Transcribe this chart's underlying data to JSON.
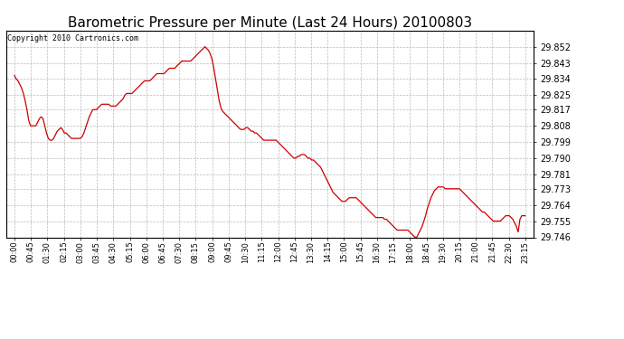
{
  "title": "Barometric Pressure per Minute (Last 24 Hours) 20100803",
  "copyright": "Copyright 2010 Cartronics.com",
  "line_color": "#cc0000",
  "background_color": "#ffffff",
  "grid_color": "#bbbbbb",
  "title_fontsize": 11,
  "ylabel_fontsize": 7,
  "xlabel_fontsize": 6,
  "ylim": [
    29.746,
    29.861
  ],
  "yticks": [
    29.852,
    29.843,
    29.834,
    29.825,
    29.817,
    29.808,
    29.799,
    29.79,
    29.781,
    29.773,
    29.764,
    29.755,
    29.746
  ],
  "xtick_labels": [
    "00:00",
    "00:45",
    "01:30",
    "02:15",
    "03:00",
    "03:45",
    "04:30",
    "05:15",
    "06:00",
    "06:45",
    "07:30",
    "08:15",
    "09:00",
    "09:45",
    "10:30",
    "11:15",
    "12:00",
    "12:45",
    "13:30",
    "14:15",
    "15:00",
    "15:45",
    "16:30",
    "17:15",
    "18:00",
    "18:45",
    "19:30",
    "20:15",
    "21:00",
    "21:45",
    "22:30",
    "23:15"
  ],
  "pressure_data": [
    29.836,
    29.834,
    29.833,
    29.831,
    29.829,
    29.826,
    29.822,
    29.817,
    29.811,
    29.808,
    29.808,
    29.808,
    29.808,
    29.81,
    29.812,
    29.813,
    29.812,
    29.808,
    29.804,
    29.801,
    29.8,
    29.8,
    29.801,
    29.803,
    29.805,
    29.806,
    29.807,
    29.806,
    29.804,
    29.804,
    29.803,
    29.802,
    29.801,
    29.801,
    29.801,
    29.801,
    29.801,
    29.801,
    29.802,
    29.804,
    29.807,
    29.81,
    29.813,
    29.815,
    29.817,
    29.817,
    29.817,
    29.818,
    29.819,
    29.82,
    29.82,
    29.82,
    29.82,
    29.82,
    29.819,
    29.819,
    29.819,
    29.819,
    29.82,
    29.821,
    29.822,
    29.823,
    29.825,
    29.826,
    29.826,
    29.826,
    29.826,
    29.827,
    29.828,
    29.829,
    29.83,
    29.831,
    29.832,
    29.833,
    29.833,
    29.833,
    29.833,
    29.834,
    29.835,
    29.836,
    29.837,
    29.837,
    29.837,
    29.837,
    29.837,
    29.838,
    29.839,
    29.84,
    29.84,
    29.84,
    29.84,
    29.841,
    29.842,
    29.843,
    29.844,
    29.844,
    29.844,
    29.844,
    29.844,
    29.844,
    29.845,
    29.846,
    29.847,
    29.848,
    29.849,
    29.85,
    29.851,
    29.852,
    29.851,
    29.85,
    29.848,
    29.845,
    29.84,
    29.834,
    29.828,
    29.822,
    29.818,
    29.816,
    29.815,
    29.814,
    29.813,
    29.812,
    29.811,
    29.81,
    29.809,
    29.808,
    29.807,
    29.806,
    29.806,
    29.806,
    29.807,
    29.807,
    29.806,
    29.805,
    29.805,
    29.804,
    29.804,
    29.803,
    29.802,
    29.801,
    29.8,
    29.8,
    29.8,
    29.8,
    29.8,
    29.8,
    29.8,
    29.8,
    29.799,
    29.798,
    29.797,
    29.796,
    29.795,
    29.794,
    29.793,
    29.792,
    29.791,
    29.79,
    29.79,
    29.791,
    29.791,
    29.792,
    29.792,
    29.792,
    29.791,
    29.79,
    29.79,
    29.789,
    29.789,
    29.788,
    29.787,
    29.786,
    29.785,
    29.783,
    29.781,
    29.779,
    29.777,
    29.775,
    29.773,
    29.771,
    29.77,
    29.769,
    29.768,
    29.767,
    29.766,
    29.766,
    29.766,
    29.767,
    29.768,
    29.768,
    29.768,
    29.768,
    29.768,
    29.767,
    29.766,
    29.765,
    29.764,
    29.763,
    29.762,
    29.761,
    29.76,
    29.759,
    29.758,
    29.757,
    29.757,
    29.757,
    29.757,
    29.757,
    29.756,
    29.756,
    29.755,
    29.754,
    29.753,
    29.752,
    29.751,
    29.75,
    29.75,
    29.75,
    29.75,
    29.75,
    29.75,
    29.75,
    29.749,
    29.748,
    29.747,
    29.746,
    29.746,
    29.748,
    29.75,
    29.752,
    29.755,
    29.758,
    29.762,
    29.765,
    29.768,
    29.77,
    29.772,
    29.773,
    29.774,
    29.774,
    29.774,
    29.774,
    29.773,
    29.773,
    29.773,
    29.773,
    29.773,
    29.773,
    29.773,
    29.773,
    29.773,
    29.772,
    29.771,
    29.77,
    29.769,
    29.768,
    29.767,
    29.766,
    29.765,
    29.764,
    29.763,
    29.762,
    29.761,
    29.76,
    29.76,
    29.759,
    29.758,
    29.757,
    29.756,
    29.755,
    29.755,
    29.755,
    29.755,
    29.755,
    29.756,
    29.757,
    29.758,
    29.758,
    29.758,
    29.757,
    29.756,
    29.754,
    29.752,
    29.749,
    29.756,
    29.758,
    29.758,
    29.758
  ]
}
